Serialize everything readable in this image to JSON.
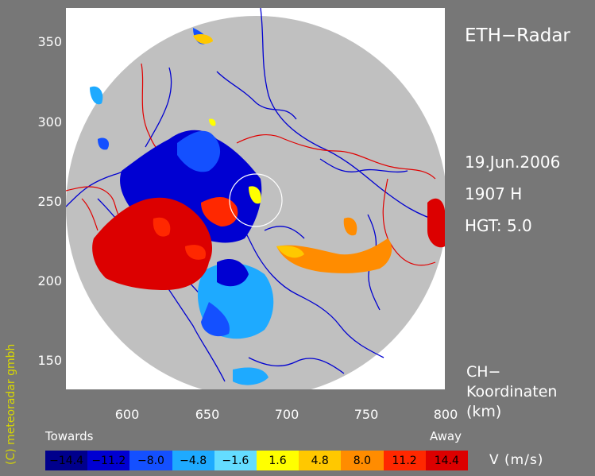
{
  "title": "ETH−Radar",
  "date": "19.Jun.2006",
  "time": "1907 H",
  "height": "HGT: 5.0",
  "coords_label_line1": "CH−",
  "coords_label_line2": "Koordinaten",
  "coords_label_line3": "(km)",
  "credit": "(C) meteoradar gmbh",
  "legend": {
    "towards": "Towards",
    "away": "Away",
    "unit": "V  (m/s)",
    "bins": [
      {
        "label": "−14.4",
        "color": "#00008c"
      },
      {
        "label": "−11.2",
        "color": "#0000d2"
      },
      {
        "label": "−8.0",
        "color": "#1450ff"
      },
      {
        "label": "−4.8",
        "color": "#1eaaff"
      },
      {
        "label": "−1.6",
        "color": "#64dcff"
      },
      {
        "label": "1.6",
        "color": "#ffff00"
      },
      {
        "label": "4.8",
        "color": "#ffc800"
      },
      {
        "label": "8.0",
        "color": "#ff8c00"
      },
      {
        "label": "11.2",
        "color": "#ff2800"
      },
      {
        "label": "14.4",
        "color": "#dc0000"
      }
    ]
  },
  "axes": {
    "x_ticks": [
      "600",
      "650",
      "700",
      "750",
      "800"
    ],
    "y_ticks": [
      "350",
      "300",
      "250",
      "200",
      "150"
    ],
    "x_range": [
      562,
      800
    ],
    "y_range": [
      132,
      371
    ]
  },
  "colors": {
    "radar_disc": "#c0c0c0",
    "rivers": "#0000d0",
    "borders": "#e00000",
    "frame_bg": "#777777"
  }
}
